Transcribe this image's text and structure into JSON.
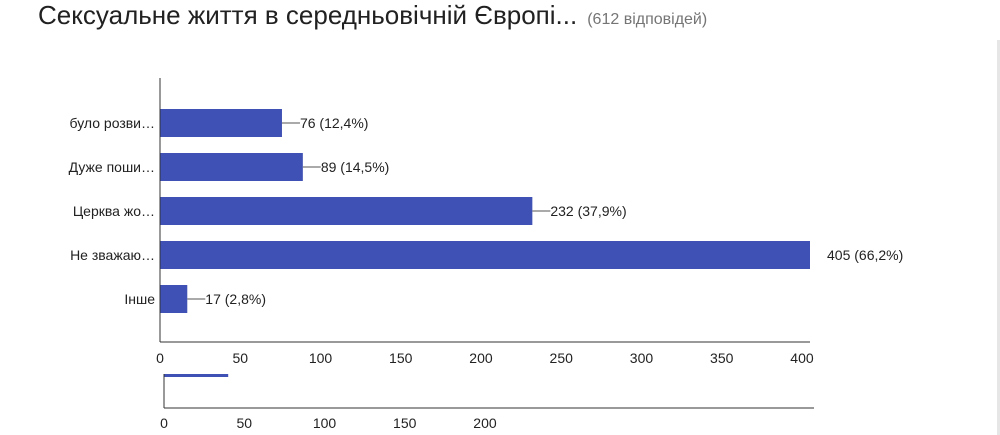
{
  "header": {
    "title": "Сексуальне життя в середньовічній Європі...",
    "response_count": "(612 відповідей)"
  },
  "colors": {
    "bar": "#3f51b5",
    "axis": "#333333",
    "connector": "#555555"
  },
  "chart_data": {
    "type": "bar",
    "orientation": "horizontal",
    "title": "Сексуальне життя в середньовічній Європі...",
    "categories": [
      "було розви…",
      "Дуже поши…",
      "Церква жо…",
      "Не зважаю…",
      "Інше"
    ],
    "values": [
      76,
      89,
      232,
      405,
      17
    ],
    "value_labels": [
      "76 (12,4%)",
      "89 (14,5%)",
      "232 (37,9%)",
      "405 (66,2%)",
      "17 (2,8%)"
    ],
    "xlim": [
      0,
      405
    ],
    "xticks": [
      0,
      50,
      100,
      150,
      200,
      250,
      300,
      350,
      400
    ],
    "grid": false,
    "legend": "none"
  },
  "scroll_slider": {
    "ticks": [
      0,
      50,
      100,
      150,
      200
    ],
    "window_range": [
      0,
      405
    ],
    "visible_range": [
      0,
      40
    ]
  }
}
